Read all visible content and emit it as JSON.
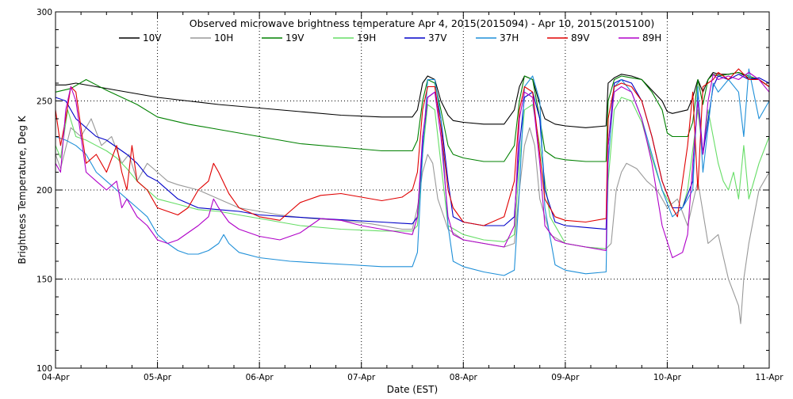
{
  "chart_data": {
    "type": "line",
    "title": "Observed microwave brightness temperature Apr  4, 2015(2015094) - Apr 10, 2015(2015100)",
    "xlabel": "Date (EST)",
    "ylabel": "Brightness Temperature, Deg K",
    "xlim": [
      0,
      7
    ],
    "ylim": [
      100,
      300
    ],
    "x_ticks": [
      0,
      1,
      2,
      3,
      4,
      5,
      6,
      7
    ],
    "x_tick_labels": [
      "04-Apr",
      "05-Apr",
      "06-Apr",
      "07-Apr",
      "08-Apr",
      "09-Apr",
      "10-Apr",
      "11-Apr"
    ],
    "y_ticks": [
      100,
      150,
      200,
      250,
      300
    ],
    "y_tick_labels": [
      "100",
      "150",
      "200",
      "250",
      "300"
    ],
    "grid": true,
    "legend_position": "top",
    "series": [
      {
        "name": "10V",
        "color": "#000000",
        "x": [
          0,
          0.1,
          0.2,
          0.4,
          0.6,
          0.8,
          1.0,
          1.3,
          1.6,
          2.0,
          2.4,
          2.8,
          3.2,
          3.5,
          3.55,
          3.6,
          3.65,
          3.72,
          3.78,
          3.85,
          3.9,
          4.0,
          4.2,
          4.4,
          4.5,
          4.55,
          4.6,
          4.68,
          4.75,
          4.8,
          4.9,
          5.0,
          5.2,
          5.4,
          5.42,
          5.48,
          5.55,
          5.65,
          5.75,
          5.85,
          5.95,
          6.0,
          6.05,
          6.2,
          6.25,
          6.3,
          6.35,
          6.4,
          6.45,
          6.5,
          6.6,
          6.7,
          6.8,
          6.9,
          7.0
        ],
        "y": [
          259,
          259,
          260,
          258,
          256,
          254,
          252,
          250,
          248,
          246,
          244,
          242,
          241,
          241,
          245,
          260,
          264,
          262,
          250,
          242,
          239,
          238,
          237,
          237,
          245,
          258,
          264,
          262,
          248,
          240,
          237,
          236,
          235,
          236,
          260,
          263,
          265,
          264,
          262,
          256,
          250,
          244,
          243,
          245,
          252,
          262,
          255,
          262,
          266,
          265,
          265,
          266,
          263,
          262,
          258
        ]
      },
      {
        "name": "10H",
        "color": "#999999",
        "x": [
          0,
          0.05,
          0.15,
          0.25,
          0.35,
          0.45,
          0.55,
          0.65,
          0.72,
          0.8,
          0.9,
          1.0,
          1.1,
          1.2,
          1.4,
          1.6,
          1.8,
          2.0,
          2.2,
          2.5,
          2.8,
          3.1,
          3.4,
          3.5,
          3.55,
          3.6,
          3.65,
          3.7,
          3.75,
          3.85,
          4.0,
          4.2,
          4.4,
          4.5,
          4.55,
          4.6,
          4.65,
          4.7,
          4.75,
          4.85,
          5.0,
          5.2,
          5.4,
          5.45,
          5.5,
          5.55,
          5.6,
          5.7,
          5.8,
          5.9,
          6.0,
          6.1,
          6.2,
          6.3,
          6.4,
          6.5,
          6.6,
          6.7,
          6.72,
          6.75,
          6.8,
          6.9,
          7.0
        ],
        "y": [
          220,
          212,
          235,
          230,
          240,
          225,
          230,
          215,
          220,
          205,
          215,
          210,
          205,
          203,
          200,
          195,
          190,
          188,
          186,
          184,
          183,
          181,
          178,
          178,
          190,
          210,
          220,
          215,
          195,
          178,
          172,
          170,
          168,
          170,
          200,
          225,
          235,
          225,
          195,
          175,
          170,
          168,
          167,
          170,
          200,
          210,
          215,
          212,
          205,
          200,
          190,
          195,
          180,
          205,
          170,
          175,
          150,
          135,
          125,
          150,
          170,
          200,
          210
        ]
      },
      {
        "name": "19V",
        "color": "#008000",
        "x": [
          0,
          0.15,
          0.3,
          0.5,
          0.8,
          1.0,
          1.3,
          1.6,
          2.0,
          2.4,
          2.8,
          3.2,
          3.5,
          3.55,
          3.6,
          3.65,
          3.72,
          3.78,
          3.85,
          3.9,
          4.0,
          4.2,
          4.4,
          4.5,
          4.55,
          4.6,
          4.68,
          4.75,
          4.8,
          4.9,
          5.0,
          5.2,
          5.4,
          5.42,
          5.48,
          5.55,
          5.65,
          5.75,
          5.85,
          5.95,
          6.0,
          6.05,
          6.2,
          6.25,
          6.3,
          6.35,
          6.4,
          6.45,
          6.5,
          6.6,
          6.7,
          6.8,
          6.9,
          7.0
        ],
        "y": [
          255,
          257,
          262,
          256,
          248,
          241,
          237,
          234,
          230,
          226,
          224,
          222,
          222,
          228,
          250,
          262,
          260,
          245,
          225,
          220,
          218,
          216,
          216,
          225,
          250,
          264,
          262,
          240,
          222,
          218,
          217,
          216,
          216,
          250,
          262,
          264,
          263,
          262,
          255,
          245,
          232,
          230,
          230,
          238,
          262,
          248,
          262,
          265,
          264,
          265,
          266,
          264,
          262,
          258
        ]
      },
      {
        "name": "19H",
        "color": "#66dd66",
        "x": [
          0,
          0.05,
          0.12,
          0.2,
          0.3,
          0.4,
          0.5,
          0.6,
          0.7,
          0.8,
          0.9,
          1.0,
          1.2,
          1.4,
          1.6,
          2.0,
          2.4,
          2.8,
          3.2,
          3.5,
          3.55,
          3.6,
          3.65,
          3.72,
          3.78,
          3.85,
          4.0,
          4.2,
          4.4,
          4.5,
          4.55,
          4.6,
          4.68,
          4.75,
          4.85,
          5.0,
          5.2,
          5.4,
          5.42,
          5.48,
          5.55,
          5.65,
          5.75,
          5.85,
          5.95,
          6.05,
          6.15,
          6.2,
          6.3,
          6.35,
          6.4,
          6.5,
          6.55,
          6.6,
          6.65,
          6.7,
          6.75,
          6.8,
          6.9,
          7.0
        ],
        "y": [
          225,
          218,
          245,
          230,
          228,
          225,
          222,
          218,
          212,
          205,
          200,
          195,
          192,
          189,
          188,
          184,
          180,
          178,
          177,
          177,
          180,
          220,
          248,
          245,
          215,
          180,
          175,
          172,
          171,
          175,
          215,
          245,
          248,
          225,
          185,
          170,
          168,
          167,
          205,
          245,
          252,
          250,
          238,
          218,
          200,
          190,
          190,
          200,
          245,
          220,
          245,
          215,
          205,
          200,
          210,
          195,
          225,
          195,
          215,
          230
        ]
      },
      {
        "name": "37V",
        "color": "#0000c8",
        "x": [
          0,
          0.1,
          0.2,
          0.3,
          0.4,
          0.5,
          0.6,
          0.7,
          0.8,
          0.9,
          1.0,
          1.2,
          1.4,
          1.6,
          1.8,
          2.0,
          2.3,
          2.6,
          2.9,
          3.2,
          3.5,
          3.55,
          3.6,
          3.65,
          3.72,
          3.78,
          3.85,
          3.9,
          4.0,
          4.2,
          4.4,
          4.5,
          4.55,
          4.6,
          4.68,
          4.75,
          4.8,
          4.9,
          5.0,
          5.2,
          5.4,
          5.42,
          5.48,
          5.55,
          5.65,
          5.75,
          5.85,
          5.95,
          6.05,
          6.15,
          6.25,
          6.3,
          6.35,
          6.45,
          6.5,
          6.6,
          6.7,
          6.8,
          6.9,
          7.0
        ],
        "y": [
          252,
          250,
          240,
          235,
          230,
          228,
          224,
          220,
          215,
          208,
          205,
          195,
          190,
          189,
          188,
          186,
          185,
          184,
          183,
          182,
          181,
          185,
          225,
          252,
          255,
          240,
          205,
          185,
          182,
          180,
          180,
          185,
          225,
          252,
          255,
          240,
          200,
          182,
          180,
          179,
          178,
          225,
          260,
          262,
          260,
          250,
          230,
          205,
          190,
          190,
          205,
          255,
          220,
          258,
          264,
          262,
          265,
          262,
          263,
          260
        ]
      },
      {
        "name": "37H",
        "color": "#1e8fd8",
        "x": [
          0,
          0.1,
          0.2,
          0.3,
          0.4,
          0.5,
          0.6,
          0.7,
          0.8,
          0.9,
          1.0,
          1.1,
          1.2,
          1.3,
          1.4,
          1.5,
          1.6,
          1.65,
          1.7,
          1.8,
          2.0,
          2.3,
          2.6,
          2.9,
          3.2,
          3.5,
          3.55,
          3.6,
          3.65,
          3.72,
          3.78,
          3.85,
          3.9,
          4.0,
          4.2,
          4.4,
          4.5,
          4.55,
          4.6,
          4.68,
          4.75,
          4.8,
          4.9,
          5.0,
          5.2,
          5.4,
          5.42,
          5.48,
          5.55,
          5.65,
          5.75,
          5.85,
          5.95,
          6.05,
          6.15,
          6.25,
          6.3,
          6.35,
          6.45,
          6.5,
          6.6,
          6.7,
          6.75,
          6.8,
          6.9,
          7.0
        ],
        "y": [
          230,
          228,
          225,
          220,
          210,
          205,
          200,
          195,
          190,
          185,
          175,
          170,
          166,
          164,
          164,
          166,
          170,
          175,
          170,
          165,
          162,
          160,
          159,
          158,
          157,
          157,
          165,
          220,
          262,
          262,
          240,
          180,
          160,
          157,
          154,
          152,
          155,
          200,
          258,
          264,
          250,
          190,
          158,
          155,
          153,
          154,
          215,
          258,
          262,
          255,
          240,
          220,
          200,
          185,
          190,
          200,
          258,
          210,
          260,
          255,
          262,
          255,
          230,
          268,
          240,
          250
        ]
      },
      {
        "name": "89V",
        "color": "#e00000",
        "x": [
          0,
          0.05,
          0.1,
          0.15,
          0.2,
          0.3,
          0.4,
          0.5,
          0.6,
          0.65,
          0.7,
          0.75,
          0.8,
          0.9,
          1.0,
          1.1,
          1.2,
          1.3,
          1.4,
          1.5,
          1.55,
          1.6,
          1.7,
          1.8,
          2.0,
          2.2,
          2.3,
          2.4,
          2.6,
          2.8,
          3.0,
          3.2,
          3.4,
          3.5,
          3.55,
          3.6,
          3.65,
          3.72,
          3.78,
          3.85,
          3.9,
          4.0,
          4.2,
          4.4,
          4.5,
          4.55,
          4.6,
          4.68,
          4.75,
          4.8,
          4.9,
          5.0,
          5.2,
          5.4,
          5.42,
          5.48,
          5.55,
          5.65,
          5.75,
          5.85,
          5.95,
          6.05,
          6.1,
          6.2,
          6.25,
          6.3,
          6.35,
          6.45,
          6.5,
          6.6,
          6.7,
          6.8,
          6.9,
          7.0
        ],
        "y": [
          245,
          225,
          240,
          258,
          255,
          215,
          220,
          210,
          225,
          210,
          200,
          225,
          205,
          200,
          190,
          188,
          186,
          190,
          200,
          205,
          215,
          210,
          198,
          190,
          185,
          183,
          188,
          193,
          197,
          198,
          196,
          194,
          196,
          200,
          210,
          245,
          258,
          258,
          235,
          200,
          190,
          182,
          180,
          185,
          205,
          245,
          258,
          255,
          220,
          195,
          185,
          183,
          182,
          184,
          240,
          258,
          260,
          258,
          250,
          230,
          205,
          190,
          185,
          225,
          255,
          200,
          258,
          262,
          266,
          262,
          268,
          262,
          262,
          258
        ]
      },
      {
        "name": "89H",
        "color": "#b000c8",
        "x": [
          0,
          0.05,
          0.1,
          0.15,
          0.2,
          0.3,
          0.4,
          0.5,
          0.6,
          0.65,
          0.7,
          0.8,
          0.9,
          1.0,
          1.1,
          1.2,
          1.3,
          1.4,
          1.5,
          1.55,
          1.6,
          1.7,
          1.8,
          2.0,
          2.2,
          2.4,
          2.6,
          2.8,
          3.0,
          3.2,
          3.4,
          3.5,
          3.55,
          3.6,
          3.65,
          3.72,
          3.78,
          3.85,
          3.9,
          4.0,
          4.2,
          4.4,
          4.5,
          4.55,
          4.6,
          4.68,
          4.75,
          4.8,
          4.9,
          5.0,
          5.2,
          5.4,
          5.42,
          5.48,
          5.55,
          5.65,
          5.75,
          5.85,
          5.95,
          6.05,
          6.15,
          6.2,
          6.25,
          6.3,
          6.35,
          6.4,
          6.45,
          6.5,
          6.6,
          6.7,
          6.8,
          6.9,
          7.0
        ],
        "y": [
          215,
          210,
          245,
          258,
          250,
          210,
          205,
          200,
          205,
          190,
          195,
          185,
          180,
          172,
          170,
          172,
          176,
          180,
          185,
          195,
          190,
          182,
          178,
          174,
          172,
          176,
          184,
          183,
          180,
          178,
          176,
          175,
          185,
          230,
          252,
          255,
          230,
          185,
          175,
          172,
          170,
          168,
          180,
          240,
          255,
          252,
          215,
          180,
          172,
          170,
          168,
          166,
          225,
          255,
          258,
          255,
          240,
          215,
          180,
          162,
          165,
          175,
          215,
          250,
          220,
          250,
          265,
          262,
          264,
          262,
          266,
          262,
          255
        ]
      }
    ]
  }
}
